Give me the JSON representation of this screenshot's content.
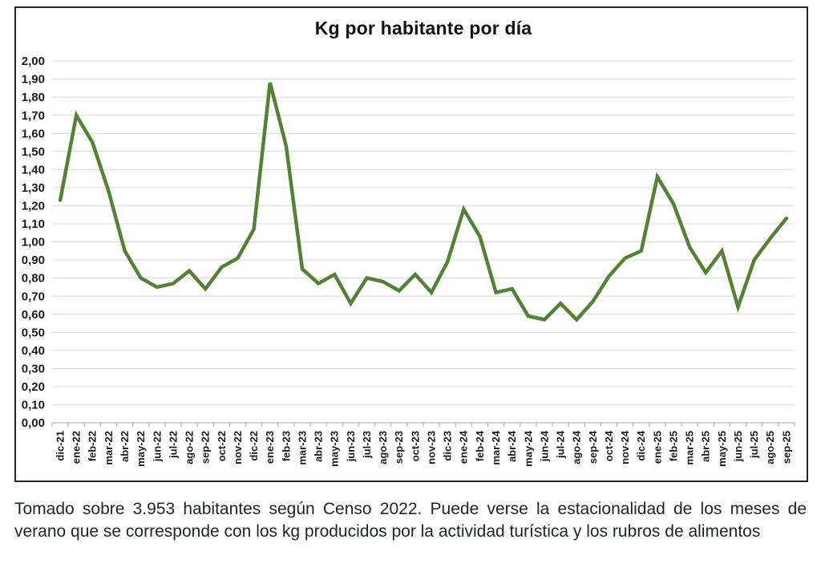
{
  "caption": "Tomado sobre 3.953 habitantes según Censo 2022. Puede verse la estacionalidad de los meses de verano que se corresponde con los kg producidos por la actividad turística y los rubros de alimentos",
  "colors": {
    "line": "#538135",
    "grid": "#d9d9d9",
    "axis": "#a6a6a6",
    "label_text": "#1a1a1a",
    "frame_border": "#262626"
  },
  "chart_data": {
    "type": "line",
    "title": "Kg por habitante por día",
    "xlabel": "",
    "ylabel": "",
    "ylim": [
      0,
      2.0
    ],
    "ytick_step": 0.1,
    "ytick_format": "comma-decimal",
    "grid": true,
    "legend": "none",
    "categories": [
      "dic-21",
      "ene-22",
      "feb-22",
      "mar-22",
      "abr-22",
      "may-22",
      "jun-22",
      "jul-22",
      "ago-22",
      "sep-22",
      "oct-22",
      "nov-22",
      "dic-22",
      "ene-23",
      "feb-23",
      "mar-23",
      "abr-23",
      "may-23",
      "jun-23",
      "jul-23",
      "ago-23",
      "sep-23",
      "oct-23",
      "nov-23",
      "dic-23",
      "ene-24",
      "feb-24",
      "mar-24",
      "abr-24",
      "may-24",
      "jun-24",
      "jul-24",
      "ago-24",
      "sep-24",
      "oct-24",
      "nov-24",
      "dic-24",
      "ene-25",
      "feb-25",
      "mar-25",
      "abr-25",
      "may-25",
      "jun-25",
      "jul-25",
      "ago-25",
      "sep-25"
    ],
    "series": [
      {
        "name": "Kg por habitante por día",
        "values": [
          1.23,
          1.7,
          1.55,
          1.28,
          0.95,
          0.8,
          0.75,
          0.77,
          0.84,
          0.74,
          0.86,
          0.91,
          1.07,
          1.88,
          1.53,
          0.85,
          0.77,
          0.82,
          0.66,
          0.8,
          0.78,
          0.73,
          0.82,
          0.72,
          0.89,
          1.18,
          1.03,
          0.72,
          0.74,
          0.59,
          0.57,
          0.66,
          0.57,
          0.67,
          0.81,
          0.91,
          0.95,
          1.36,
          1.21,
          0.97,
          0.83,
          0.95,
          0.64,
          0.9,
          1.02,
          1.13
        ]
      }
    ]
  }
}
